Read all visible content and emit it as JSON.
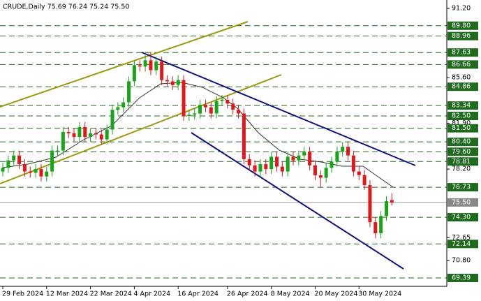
{
  "chart_data": {
    "type": "candlestick",
    "title": "CRUDE,Daily 75.69 76.24 75.24 75.50",
    "categories": [
      "29 Feb 2024",
      null,
      null,
      null,
      null,
      null,
      null,
      null,
      "12 Mar 2024",
      null,
      null,
      null,
      null,
      null,
      null,
      null,
      "22 Mar 2024",
      null,
      null,
      null,
      null,
      null,
      null,
      null,
      "4 Apr 2024",
      null,
      null,
      null,
      null,
      null,
      null,
      null,
      "16 Apr 2024",
      null,
      null,
      null,
      null,
      null,
      null,
      null,
      null,
      "26 Apr 2024",
      null,
      null,
      null,
      null,
      null,
      null,
      null,
      "8 May 2024",
      null,
      null,
      null,
      null,
      null,
      null,
      null,
      "20 May 2024",
      null,
      null,
      null,
      null,
      null,
      null,
      null,
      "30 May 2024",
      null,
      null,
      null,
      null,
      null,
      null
    ],
    "open": [
      78.0,
      78.3,
      78.9,
      79.3,
      78.6,
      78.0,
      77.9,
      78.2,
      77.6,
      78.0,
      79.7,
      79.7,
      81.2,
      81.1,
      80.8,
      81.6,
      80.8,
      81.1,
      81.0,
      80.6,
      81.4,
      83.0,
      83.2,
      83.6,
      85.3,
      86.6,
      86.5,
      87.0,
      86.2,
      86.9,
      85.4,
      85.3,
      85.0,
      85.4,
      82.5,
      82.6,
      82.7,
      83.4,
      83.2,
      82.7,
      83.7,
      83.8,
      83.5,
      83.0,
      82.7,
      79.0,
      78.5,
      78.0,
      78.6,
      78.2,
      79.2,
      78.4,
      78.0,
      79.2,
      78.9,
      79.3,
      79.6,
      78.5,
      77.7,
      77.5,
      78.3,
      78.8,
      79.6,
      80.0,
      79.3,
      78.0,
      77.7,
      76.9,
      73.9,
      73.0,
      74.4,
      75.69
    ],
    "high": [
      78.7,
      79.3,
      79.7,
      79.7,
      79.0,
      78.4,
      78.6,
      78.6,
      78.4,
      80.1,
      80.1,
      81.6,
      81.6,
      81.5,
      82.0,
      82.0,
      81.5,
      81.5,
      81.4,
      81.8,
      83.4,
      83.6,
      84.0,
      85.7,
      87.0,
      87.0,
      87.4,
      87.63,
      87.3,
      87.3,
      85.8,
      85.7,
      85.8,
      85.8,
      83.0,
      83.1,
      83.8,
      83.8,
      83.6,
      84.1,
      84.2,
      84.2,
      83.9,
      83.4,
      83.1,
      79.4,
      78.9,
      79.0,
      79.0,
      79.6,
      79.6,
      78.8,
      79.6,
      79.6,
      79.7,
      80.0,
      80.0,
      78.9,
      78.1,
      78.7,
      79.2,
      80.0,
      80.4,
      80.4,
      79.7,
      78.4,
      78.1,
      77.3,
      74.3,
      74.8,
      76.0,
      76.24
    ],
    "low": [
      77.6,
      77.9,
      78.5,
      78.2,
      77.6,
      77.5,
      77.5,
      77.2,
      77.2,
      77.6,
      79.3,
      79.3,
      80.7,
      80.4,
      80.4,
      80.4,
      80.4,
      80.6,
      80.2,
      80.2,
      81.0,
      82.6,
      82.8,
      83.2,
      84.9,
      86.1,
      86.1,
      85.8,
      85.8,
      85.0,
      84.9,
      84.6,
      84.6,
      82.1,
      82.1,
      82.2,
      82.3,
      82.8,
      82.3,
      82.3,
      83.3,
      83.1,
      82.6,
      82.3,
      78.6,
      78.1,
      77.6,
      77.6,
      77.8,
      77.8,
      78.0,
      77.6,
      77.6,
      78.5,
      78.5,
      78.9,
      78.1,
      77.3,
      76.73,
      77.1,
      77.9,
      78.4,
      79.2,
      78.9,
      77.6,
      77.3,
      76.5,
      73.5,
      72.6,
      72.6,
      74.0,
      75.24
    ],
    "close": [
      78.3,
      78.9,
      79.3,
      78.6,
      78.0,
      77.9,
      78.2,
      77.6,
      78.0,
      79.7,
      79.7,
      81.2,
      81.1,
      80.8,
      81.6,
      80.8,
      81.1,
      81.0,
      80.6,
      81.4,
      83.0,
      83.2,
      83.6,
      85.3,
      86.6,
      86.5,
      87.0,
      86.2,
      86.9,
      85.4,
      85.3,
      85.0,
      85.4,
      82.5,
      82.6,
      82.7,
      83.4,
      83.2,
      82.7,
      83.7,
      83.8,
      83.5,
      83.0,
      82.7,
      79.0,
      78.5,
      78.0,
      78.6,
      78.2,
      79.2,
      78.4,
      78.0,
      79.2,
      78.9,
      79.3,
      79.6,
      78.5,
      77.7,
      77.5,
      78.3,
      78.8,
      79.6,
      80.0,
      79.3,
      78.0,
      77.7,
      76.9,
      73.9,
      73.0,
      74.4,
      75.6,
      75.5
    ],
    "up_color": "#18a518",
    "down_color": "#e3161b",
    "ylim": [
      68.71,
      91.88
    ],
    "yticks": [
      {
        "value": 91.2,
        "label": "91.20"
      },
      {
        "value": 85.6,
        "label": "85.60"
      },
      {
        "value": 81.9,
        "label": "81.90"
      },
      {
        "value": 78.2,
        "label": "78.20"
      },
      72.65,
      {
        "value": 70.8,
        "label": "70.80"
      }
    ],
    "levels": [
      {
        "value": 89.8,
        "label": "89.80"
      },
      {
        "value": 88.96,
        "label": "88.96"
      },
      {
        "value": 87.63,
        "label": "87.63"
      },
      {
        "value": 86.66,
        "label": "86.66"
      },
      {
        "value": 84.86,
        "label": "84.86"
      },
      {
        "value": 83.34,
        "label": "83.34"
      },
      {
        "value": 82.5,
        "label": "82.50"
      },
      {
        "value": 81.5,
        "label": "81.50"
      },
      {
        "value": 80.4,
        "label": "80.40"
      },
      {
        "value": 79.6,
        "label": "79.60"
      },
      {
        "value": 78.81,
        "label": "78.81"
      },
      {
        "value": 76.73,
        "label": "76.73"
      },
      {
        "value": 74.3,
        "label": "74.30"
      },
      {
        "value": 72.14,
        "label": "72.14"
      },
      {
        "value": 69.39,
        "label": "69.39"
      }
    ],
    "level_color": "#1e6b1e",
    "last": {
      "value": 75.5,
      "label": "75.50"
    }
  }
}
